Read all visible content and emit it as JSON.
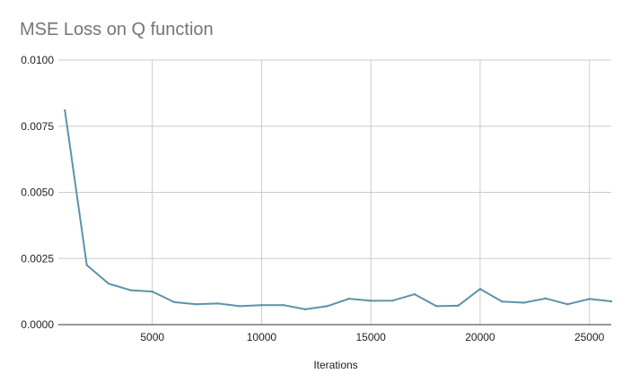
{
  "chart_data": {
    "type": "line",
    "title": "MSE Loss on Q function",
    "xlabel": "Iterations",
    "ylabel": "",
    "xlim": [
      700,
      26000
    ],
    "ylim": [
      0,
      0.01
    ],
    "grid": true,
    "legend": "none",
    "x_ticks": [
      5000,
      10000,
      15000,
      20000,
      25000
    ],
    "x_tick_labels": [
      "5000",
      "10000",
      "15000",
      "20000",
      "25000"
    ],
    "y_ticks": [
      0,
      0.0025,
      0.005,
      0.0075,
      0.01
    ],
    "y_tick_labels": [
      "0.0000",
      "0.0025",
      "0.0050",
      "0.0075",
      "0.0100"
    ],
    "series": [
      {
        "color": "#5b93aa",
        "x": [
          1000,
          2000,
          3000,
          4000,
          5000,
          6000,
          7000,
          8000,
          9000,
          10000,
          11000,
          12000,
          13000,
          14000,
          15000,
          16000,
          17000,
          18000,
          19000,
          20000,
          21000,
          22000,
          23000,
          24000,
          25000,
          26000
        ],
        "y": [
          0.0081,
          0.00225,
          0.00155,
          0.0013,
          0.00125,
          0.00085,
          0.00077,
          0.0008,
          0.0007,
          0.00074,
          0.00074,
          0.00058,
          0.0007,
          0.00098,
          0.0009,
          0.00091,
          0.00115,
          0.0007,
          0.00072,
          0.00135,
          0.00087,
          0.00083,
          0.00099,
          0.00077,
          0.00097,
          0.00088
        ]
      }
    ]
  }
}
